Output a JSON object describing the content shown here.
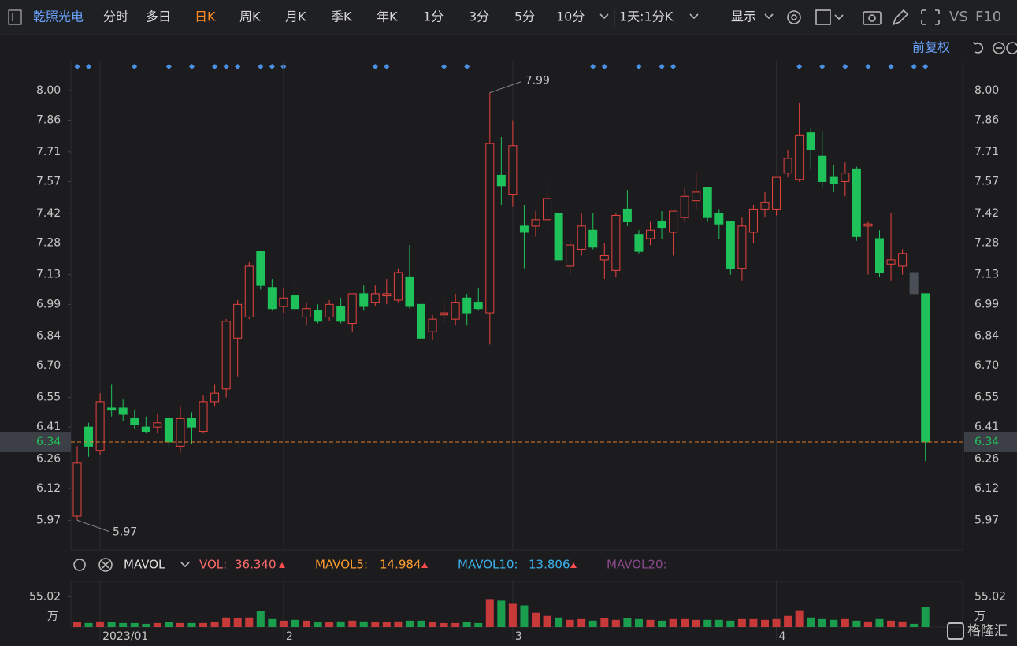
{
  "toolbar": {
    "stock": "乾照光电",
    "tabs": [
      "分时",
      "多日",
      "日K",
      "周K",
      "月K",
      "季K",
      "年K",
      "1分",
      "3分",
      "5分",
      "10分"
    ],
    "period": "1天:1分K",
    "display": "显示",
    "vs": "VS",
    "f10": "F10",
    "adjust": "前复权"
  },
  "indicator": {
    "name": "MAVOL",
    "items": [
      {
        "label": "VOL:",
        "value": "36.340"
      },
      {
        "label": "MAVOL5:",
        "value": "14.984"
      },
      {
        "label": "MAVOL10:",
        "value": "13.806"
      },
      {
        "label": "MAVOL20:"
      }
    ],
    "unit": "万"
  },
  "watermark": "格隆汇",
  "chart_data": [
    {
      "type": "candlestick",
      "categories": [
        null,
        null,
        "2023/01",
        null,
        null,
        null,
        null,
        null,
        null,
        null,
        null,
        null,
        null,
        null,
        null,
        null,
        null,
        null,
        "2",
        null,
        null,
        null,
        null,
        null,
        null,
        null,
        null,
        null,
        null,
        null,
        null,
        null,
        null,
        null,
        null,
        null,
        null,
        null,
        "3",
        null,
        null,
        null,
        null,
        null,
        null,
        null,
        null,
        null,
        null,
        null,
        null,
        null,
        null,
        null,
        null,
        null,
        null,
        null,
        null,
        null,
        null,
        "4",
        null,
        null,
        null,
        null,
        null,
        null,
        null,
        null,
        null,
        null,
        null,
        null,
        null
      ],
      "open": [
        5.99,
        6.41,
        6.3,
        6.5,
        6.5,
        6.45,
        6.41,
        6.41,
        6.45,
        6.32,
        6.45,
        6.39,
        6.53,
        6.59,
        6.83,
        6.93,
        7.24,
        7.07,
        6.98,
        7.03,
        6.93,
        6.96,
        6.93,
        6.98,
        6.9,
        7.04,
        7.0,
        7.03,
        7.01,
        7.12,
        6.99,
        6.86,
        6.94,
        6.92,
        7.02,
        7.0,
        6.95,
        7.6,
        7.51,
        7.36,
        7.36,
        7.39,
        7.42,
        7.17,
        7.25,
        7.34,
        7.2,
        7.15,
        7.44,
        7.32,
        7.3,
        7.38,
        7.33,
        7.4,
        7.48,
        7.54,
        7.42,
        7.38,
        7.16,
        7.33,
        7.44,
        7.44,
        7.61,
        7.58,
        7.8,
        7.69,
        7.59,
        7.57,
        7.63,
        7.36,
        7.3,
        7.18,
        7.17,
        7.14,
        7.04
      ],
      "high": [
        6.32,
        6.43,
        6.57,
        6.61,
        6.54,
        6.49,
        6.46,
        6.47,
        6.46,
        6.51,
        6.48,
        6.56,
        6.61,
        6.92,
        7.01,
        7.19,
        7.24,
        7.11,
        7.07,
        7.11,
        7.0,
        6.99,
        7.01,
        7.02,
        7.04,
        7.08,
        7.08,
        7.11,
        7.16,
        7.27,
        7.0,
        6.94,
        7.02,
        7.04,
        7.04,
        7.07,
        7.99,
        7.78,
        7.86,
        7.46,
        7.43,
        7.58,
        7.42,
        7.29,
        7.42,
        7.42,
        7.28,
        7.42,
        7.53,
        7.34,
        7.38,
        7.43,
        7.43,
        7.54,
        7.61,
        7.54,
        7.44,
        7.38,
        7.4,
        7.46,
        7.52,
        7.59,
        7.72,
        7.94,
        7.82,
        7.81,
        7.65,
        7.66,
        7.64,
        7.38,
        7.34,
        7.42,
        7.25,
        7.14,
        7.04
      ],
      "low": [
        5.97,
        6.27,
        6.28,
        6.46,
        6.44,
        6.4,
        6.38,
        6.38,
        6.31,
        6.29,
        6.33,
        6.38,
        6.51,
        6.55,
        6.65,
        6.92,
        7.06,
        6.96,
        6.95,
        6.96,
        6.89,
        6.9,
        6.91,
        6.9,
        6.86,
        6.96,
        6.98,
        6.99,
        7.0,
        6.97,
        6.81,
        6.82,
        6.9,
        6.89,
        6.89,
        6.96,
        6.8,
        7.46,
        7.45,
        7.16,
        7.31,
        7.33,
        7.2,
        7.13,
        7.22,
        7.25,
        7.11,
        7.12,
        7.36,
        7.23,
        7.27,
        7.3,
        7.22,
        7.38,
        7.44,
        7.38,
        7.3,
        7.13,
        7.1,
        7.28,
        7.4,
        7.41,
        7.59,
        7.57,
        7.63,
        7.54,
        7.52,
        7.5,
        7.29,
        7.13,
        7.12,
        7.1,
        7.13,
        7.04,
        6.25
      ],
      "close": [
        6.24,
        6.32,
        6.53,
        6.49,
        6.47,
        6.42,
        6.39,
        6.43,
        6.34,
        6.45,
        6.41,
        6.53,
        6.57,
        6.91,
        6.99,
        7.17,
        7.08,
        6.97,
        7.02,
        6.97,
        6.97,
        6.91,
        6.99,
        6.91,
        7.04,
        6.98,
        7.04,
        7.04,
        7.14,
        6.98,
        6.83,
        6.92,
        6.95,
        7.0,
        6.95,
        6.97,
        7.75,
        7.55,
        7.74,
        7.33,
        7.39,
        7.49,
        7.2,
        7.27,
        7.36,
        7.26,
        7.22,
        7.41,
        7.38,
        7.24,
        7.34,
        7.35,
        7.43,
        7.5,
        7.52,
        7.4,
        7.37,
        7.16,
        7.36,
        7.44,
        7.47,
        7.59,
        7.68,
        7.79,
        7.72,
        7.57,
        7.56,
        7.61,
        7.31,
        7.37,
        7.14,
        7.2,
        7.23,
        7.04,
        6.34
      ],
      "up_color": "#e8433e",
      "down_color": "#1fc25a",
      "highlight": {
        "index": 73,
        "color": "#4a4f57"
      },
      "last_price": 6.34,
      "last_price_color": "#e07b2a",
      "ylim": [
        5.83,
        8.13
      ],
      "yticks": [
        {
          "value": 8,
          "label": "8.00"
        },
        7.86,
        7.71,
        7.57,
        7.42,
        7.28,
        7.13,
        6.99,
        6.84,
        {
          "value": 6.7,
          "label": "6.70"
        },
        6.55,
        6.41,
        6.26,
        6.12,
        5.97
      ]
    },
    {
      "type": "bar",
      "values": [
        8.7,
        7.3,
        10.2,
        8.7,
        7.3,
        7.3,
        5.8,
        7.3,
        8.7,
        7.3,
        7.3,
        7.3,
        8.7,
        17.4,
        16,
        17.4,
        29,
        14.5,
        11.6,
        13.1,
        11.6,
        8.7,
        8.7,
        10.2,
        11.6,
        10.2,
        8.7,
        8.7,
        10.2,
        11.6,
        11.6,
        8.7,
        7.3,
        7.3,
        8.7,
        7.3,
        50.8,
        47.9,
        42.1,
        39.2,
        26.1,
        20.3,
        17.4,
        13.1,
        14.5,
        11.6,
        16,
        13.1,
        16,
        14.5,
        13.1,
        11.6,
        14.5,
        14.5,
        13.1,
        13.1,
        13.1,
        11.6,
        14.5,
        14.5,
        13.1,
        14.5,
        20.3,
        30.5,
        17.4,
        14.5,
        13.1,
        14.5,
        11.6,
        10.2,
        14.5,
        11.6,
        10.2,
        5.8,
        36.34
      ],
      "ylim": [
        0,
        82.7
      ],
      "yticks": [
        55.02
      ]
    }
  ]
}
